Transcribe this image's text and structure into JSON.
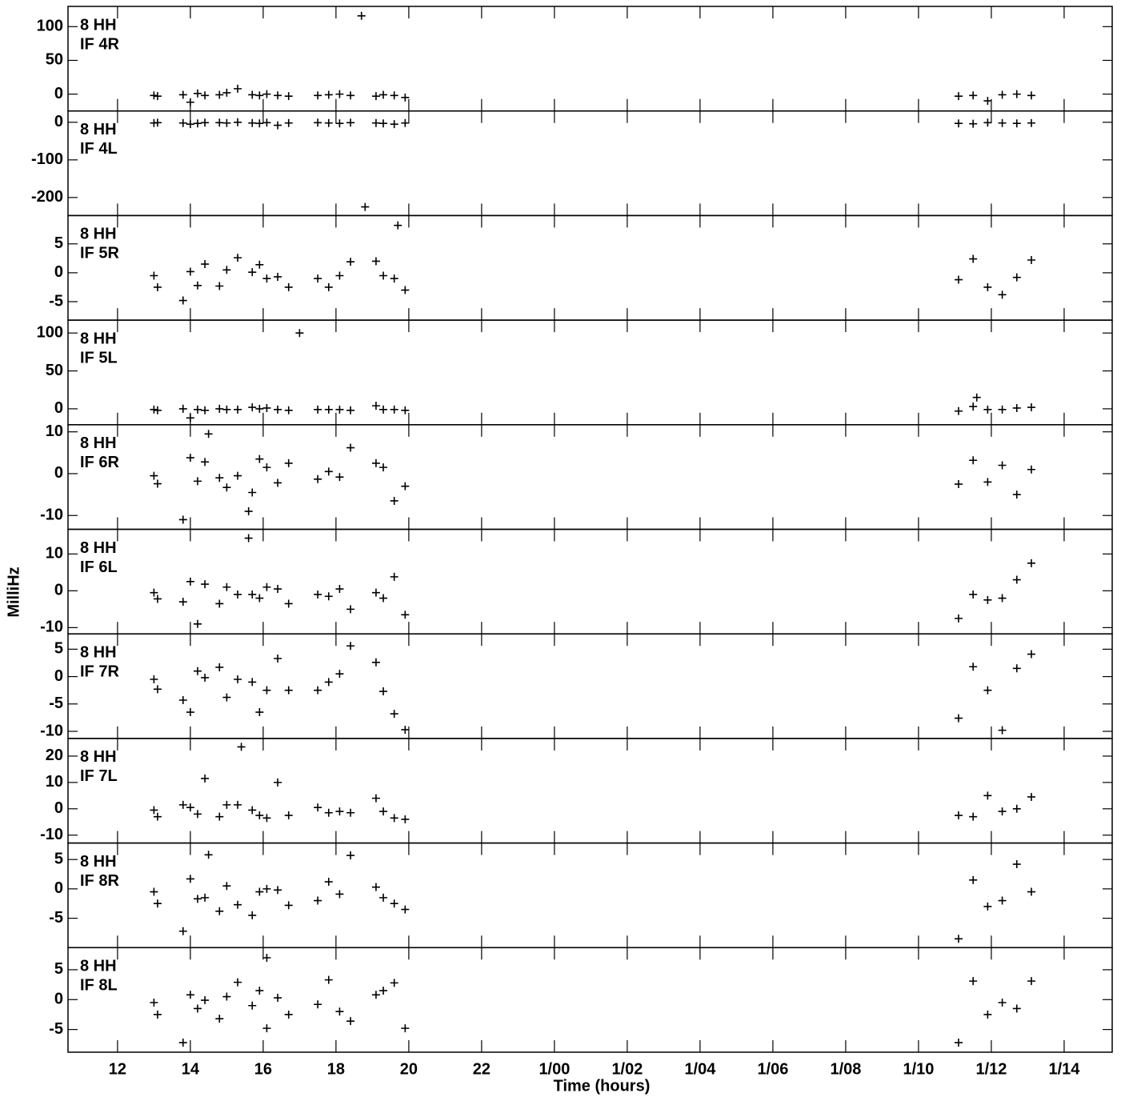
{
  "chart_data": {
    "type": "scatter",
    "xlabel": "Time (hours)",
    "ylabel": "MilliHz",
    "xlim": [
      10.64,
      39.32
    ],
    "xticks": [
      12,
      14,
      16,
      18,
      20,
      22,
      {
        "value": 24,
        "label": "1/00"
      },
      {
        "value": 26,
        "label": "1/02"
      },
      {
        "value": 28,
        "label": "1/04"
      },
      {
        "value": 30,
        "label": "1/06"
      },
      {
        "value": 32,
        "label": "1/08"
      },
      {
        "value": 34,
        "label": "1/10"
      },
      {
        "value": 36,
        "label": "1/12"
      },
      {
        "value": 38,
        "label": "1/14"
      }
    ],
    "color": "#000000",
    "panels": [
      {
        "type": "scatter",
        "labels": [
          "8 HH",
          "IF 4R"
        ],
        "ylim": [
          -25,
          130
        ],
        "yticks": [
          0,
          50,
          100
        ],
        "x": [
          13.0,
          13.1,
          13.8,
          14.0,
          14.2,
          14.4,
          14.8,
          15.0,
          15.3,
          15.7,
          15.9,
          16.1,
          16.4,
          16.7,
          17.5,
          17.8,
          18.1,
          18.4,
          19.1,
          19.3,
          19.6,
          19.9,
          35.1,
          35.5,
          35.9,
          36.3,
          36.7,
          37.1,
          18.7
        ],
        "values": [
          -2,
          -3,
          -1,
          -12,
          1,
          -2,
          -1,
          2,
          8,
          -1,
          -2,
          0,
          -2,
          -3,
          -2,
          -1,
          0,
          -2,
          -3,
          -1,
          -2,
          -5,
          -3,
          -2,
          -10,
          -1,
          0,
          -2,
          116
        ]
      },
      {
        "type": "scatter",
        "labels": [
          "8 HH",
          "IF 4L"
        ],
        "ylim": [
          -248,
          30
        ],
        "yticks": [
          -200,
          -100,
          0
        ],
        "x": [
          13.0,
          13.1,
          13.8,
          14.0,
          14.2,
          14.4,
          14.8,
          15.0,
          15.3,
          15.7,
          15.9,
          16.1,
          16.4,
          16.7,
          17.5,
          17.8,
          18.1,
          18.4,
          19.1,
          19.3,
          19.6,
          19.9,
          35.1,
          35.5,
          35.9,
          36.3,
          36.7,
          37.1,
          18.8
        ],
        "values": [
          -2,
          -1,
          -2,
          -5,
          -3,
          -1,
          -1,
          -2,
          0,
          -2,
          -3,
          -1,
          -8,
          -2,
          -1,
          -2,
          -3,
          -1,
          -2,
          -3,
          -5,
          -2,
          -3,
          -4,
          -1,
          -2,
          -3,
          -2,
          -225
        ]
      },
      {
        "type": "scatter",
        "labels": [
          "8 HH",
          "IF 5R"
        ],
        "ylim": [
          -8.2,
          9.9
        ],
        "yticks": [
          -5,
          0,
          5
        ],
        "x": [
          13.0,
          13.1,
          13.8,
          14.0,
          14.2,
          14.4,
          14.8,
          15.0,
          15.3,
          15.7,
          15.9,
          16.1,
          16.4,
          16.7,
          17.5,
          17.8,
          18.1,
          18.4,
          19.1,
          19.3,
          19.6,
          19.9,
          35.1,
          35.5,
          35.9,
          36.3,
          36.7,
          37.1,
          19.7
        ],
        "values": [
          -0.5,
          -2.5,
          -4.8,
          0.2,
          -2.2,
          1.5,
          -2.3,
          0.5,
          2.6,
          0.1,
          1.4,
          -1.0,
          -0.7,
          -2.5,
          -1.0,
          -2.5,
          -0.5,
          1.9,
          2.0,
          -0.5,
          -1.0,
          -3.0,
          -1.2,
          2.4,
          -2.5,
          -3.8,
          -0.8,
          2.2,
          8.2
        ]
      },
      {
        "type": "scatter",
        "labels": [
          "8 HH",
          "IF 5L"
        ],
        "ylim": [
          -21,
          117
        ],
        "yticks": [
          0,
          50,
          100
        ],
        "x": [
          13.0,
          13.1,
          13.8,
          14.0,
          14.2,
          14.4,
          14.8,
          15.0,
          15.3,
          15.7,
          15.9,
          16.1,
          16.4,
          16.7,
          17.5,
          17.8,
          18.1,
          18.4,
          19.1,
          19.3,
          19.6,
          19.9,
          35.1,
          35.5,
          35.9,
          36.3,
          36.7,
          37.1,
          17.0,
          35.6
        ],
        "values": [
          -1,
          -2,
          0,
          -12,
          -1,
          -2,
          0,
          -1,
          -1,
          2,
          0,
          1,
          -1,
          -2,
          -1,
          -1,
          -1,
          -2,
          4,
          -1,
          -1,
          -2,
          -3,
          3,
          -1,
          -1,
          1,
          2,
          100,
          15
        ]
      },
      {
        "type": "scatter",
        "labels": [
          "8 HH",
          "IF 6R"
        ],
        "ylim": [
          -13.3,
          11.7
        ],
        "yticks": [
          -10,
          0,
          10
        ],
        "x": [
          13.0,
          13.1,
          13.8,
          14.0,
          14.2,
          14.4,
          14.8,
          15.0,
          15.3,
          15.7,
          15.9,
          16.1,
          16.4,
          16.7,
          17.5,
          17.8,
          18.1,
          18.4,
          19.1,
          19.3,
          19.6,
          19.9,
          35.1,
          35.5,
          35.9,
          36.3,
          36.7,
          37.1,
          14.5,
          15.6
        ],
        "values": [
          -0.5,
          -2.4,
          -11,
          3.8,
          -1.8,
          2.8,
          -1.0,
          -3.3,
          -0.5,
          -4.5,
          3.5,
          1.5,
          -2.2,
          2.5,
          -1.3,
          0.5,
          -0.8,
          6.2,
          2.5,
          1.5,
          -6.5,
          -3.0,
          -2.5,
          3.2,
          -2.0,
          2.0,
          -5.0,
          1.0,
          9.5,
          -9
        ]
      },
      {
        "type": "scatter",
        "labels": [
          "8 HH",
          "IF 6L"
        ],
        "ylim": [
          -11.7,
          16.7
        ],
        "yticks": [
          -10,
          0,
          10
        ],
        "x": [
          13.0,
          13.1,
          13.8,
          14.0,
          14.2,
          14.4,
          14.8,
          15.0,
          15.3,
          15.7,
          15.9,
          16.1,
          16.4,
          16.7,
          17.5,
          17.8,
          18.1,
          18.4,
          19.1,
          19.3,
          19.6,
          19.9,
          35.1,
          35.5,
          35.9,
          36.3,
          36.7,
          37.1,
          15.6
        ],
        "values": [
          -0.5,
          -2.2,
          -3.0,
          2.5,
          -9,
          1.8,
          -3.5,
          1.0,
          -1.0,
          -1.0,
          -2.0,
          1.0,
          0.5,
          -3.5,
          -1.0,
          -1.5,
          0.5,
          -5.0,
          -0.5,
          -2.0,
          3.8,
          -6.5,
          -7.5,
          -1.0,
          -2.5,
          -2.0,
          3.0,
          7.5,
          14.3
        ]
      },
      {
        "type": "scatter",
        "labels": [
          "8 HH",
          "IF 7R"
        ],
        "ylim": [
          -11.3,
          7.8
        ],
        "yticks": [
          -10,
          -5,
          0,
          5
        ],
        "x": [
          13.0,
          13.1,
          13.8,
          14.0,
          14.2,
          14.4,
          14.8,
          15.0,
          15.3,
          15.7,
          15.9,
          16.1,
          16.4,
          16.7,
          17.5,
          17.8,
          18.1,
          18.4,
          19.1,
          19.3,
          19.6,
          19.9,
          35.1,
          35.5,
          35.9,
          36.3,
          36.7,
          37.1
        ],
        "values": [
          -0.5,
          -2.3,
          -4.3,
          -6.5,
          1.0,
          -0.2,
          1.7,
          -3.8,
          -0.5,
          -1.0,
          -6.5,
          -2.5,
          3.3,
          -2.5,
          -2.5,
          -1.0,
          0.5,
          5.6,
          2.6,
          -2.7,
          -6.8,
          -9.7,
          -7.6,
          1.8,
          -2.5,
          -9.8,
          1.5,
          4.1
        ]
      },
      {
        "type": "scatter",
        "labels": [
          "8 HH",
          "IF 7L"
        ],
        "ylim": [
          -13,
          26.7
        ],
        "yticks": [
          -10,
          0,
          10,
          20
        ],
        "x": [
          13.0,
          13.1,
          13.8,
          14.0,
          14.2,
          14.4,
          14.8,
          15.0,
          15.3,
          15.7,
          15.9,
          16.1,
          16.4,
          16.7,
          17.5,
          17.8,
          18.1,
          18.4,
          19.1,
          19.3,
          19.6,
          19.9,
          35.1,
          35.5,
          35.9,
          36.3,
          36.7,
          37.1,
          15.4
        ],
        "values": [
          -0.5,
          -3.0,
          1.5,
          0.5,
          -2.0,
          11.5,
          -3.0,
          1.5,
          1.5,
          -0.5,
          -2.5,
          -3.5,
          10,
          -2.5,
          0.5,
          -1.5,
          -1.0,
          -1.5,
          4,
          -1.0,
          -3.5,
          -4.0,
          -2.5,
          -3.0,
          5.0,
          -1.0,
          0,
          4.5,
          23.5
        ]
      },
      {
        "type": "scatter",
        "labels": [
          "8 HH",
          "IF 8R"
        ],
        "ylim": [
          -10,
          7.8
        ],
        "yticks": [
          -5,
          0,
          5
        ],
        "x": [
          13.0,
          13.1,
          13.8,
          14.0,
          14.2,
          14.4,
          14.8,
          15.0,
          15.3,
          15.7,
          15.9,
          16.1,
          16.4,
          16.7,
          17.5,
          17.8,
          18.1,
          18.4,
          19.1,
          19.3,
          19.6,
          19.9,
          35.1,
          35.5,
          35.9,
          36.3,
          36.7,
          37.1,
          14.5
        ],
        "values": [
          -0.5,
          -2.5,
          -7.2,
          1.7,
          -1.7,
          -1.5,
          -3.8,
          0.5,
          -2.7,
          -4.5,
          -0.5,
          0.0,
          -0.2,
          -2.8,
          -2.0,
          1.2,
          -0.9,
          5.7,
          0.3,
          -1.5,
          -2.5,
          -3.5,
          -8.5,
          1.5,
          -3.0,
          -2.0,
          4.2,
          -0.5,
          5.8
        ]
      },
      {
        "type": "scatter",
        "labels": [
          "8 HH",
          "IF 8L"
        ],
        "ylim": [
          -8.8,
          8.7
        ],
        "yticks": [
          -5,
          0,
          5
        ],
        "x": [
          13.0,
          13.1,
          13.8,
          14.0,
          14.2,
          14.4,
          14.8,
          15.0,
          15.3,
          15.7,
          15.9,
          16.1,
          16.4,
          16.7,
          17.5,
          17.8,
          18.1,
          18.4,
          19.1,
          19.3,
          19.6,
          19.9,
          35.1,
          35.5,
          35.9,
          36.3,
          36.7,
          37.1,
          16.1
        ],
        "values": [
          -0.5,
          -2.5,
          -7.2,
          0.8,
          -1.5,
          -0.1,
          -3.2,
          0.5,
          2.9,
          -1.0,
          1.5,
          -4.8,
          0.3,
          -2.5,
          -0.8,
          3.3,
          -2.0,
          -3.6,
          0.8,
          1.5,
          2.8,
          -4.8,
          -7.2,
          3.1,
          -2.5,
          -0.5,
          -1.5,
          3.1,
          7.0
        ]
      }
    ]
  }
}
